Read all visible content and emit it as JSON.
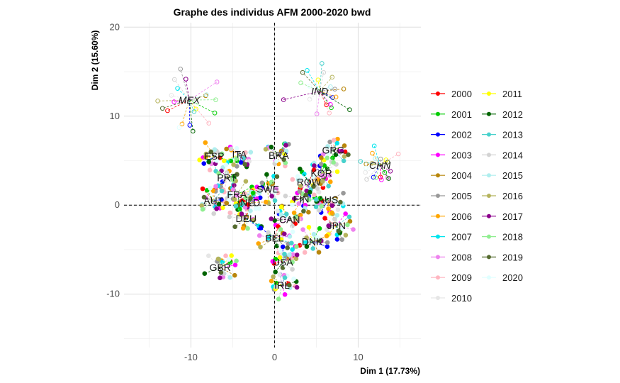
{
  "chart_data": {
    "type": "scatter",
    "title": "Graphe des individus AFM 2000-2020 bwd",
    "xlabel": "Dim 1 (17.73%)",
    "ylabel": "Dim 2 (15.60%)",
    "xlim": [
      -18,
      17.5
    ],
    "ylim": [
      -16,
      20.5
    ],
    "xticks": [
      -10,
      0,
      10
    ],
    "yticks": [
      -10,
      0,
      10,
      20
    ],
    "grid": true,
    "reference_lines": {
      "x": 0,
      "y": 0,
      "style": "dashed"
    },
    "legend_position": "right",
    "series": [
      {
        "name": "2000",
        "color": "#ff0000"
      },
      {
        "name": "2001",
        "color": "#00cc00"
      },
      {
        "name": "2002",
        "color": "#0000ff"
      },
      {
        "name": "2003",
        "color": "#ff00ff"
      },
      {
        "name": "2004",
        "color": "#b8860b"
      },
      {
        "name": "2005",
        "color": "#999999"
      },
      {
        "name": "2006",
        "color": "#ffa500"
      },
      {
        "name": "2007",
        "color": "#00e5ee"
      },
      {
        "name": "2008",
        "color": "#ee82ee"
      },
      {
        "name": "2009",
        "color": "#ffb6c1"
      },
      {
        "name": "2010",
        "color": "#e6e6e6"
      },
      {
        "name": "2011",
        "color": "#ffff00"
      },
      {
        "name": "2012",
        "color": "#006400"
      },
      {
        "name": "2013",
        "color": "#48d1cc"
      },
      {
        "name": "2014",
        "color": "#d3d3d3"
      },
      {
        "name": "2015",
        "color": "#afeeee"
      },
      {
        "name": "2016",
        "color": "#b5b35c"
      },
      {
        "name": "2017",
        "color": "#8b008b"
      },
      {
        "name": "2018",
        "color": "#90ee90"
      },
      {
        "name": "2019",
        "color": "#556b2f"
      },
      {
        "name": "2020",
        "color": "#e0ffff"
      }
    ],
    "countries": [
      {
        "label": "MEX",
        "x": -10.2,
        "y": 11.8,
        "italic": true
      },
      {
        "label": "IND",
        "x": 5.4,
        "y": 12.8,
        "italic": true
      },
      {
        "label": "CHN",
        "x": 12.6,
        "y": 4.5,
        "italic": true
      },
      {
        "label": "ESP",
        "x": -7.2,
        "y": 5.5,
        "italic": false
      },
      {
        "label": "ITA",
        "x": -4.2,
        "y": 5.7,
        "italic": false
      },
      {
        "label": "BRA",
        "x": 0.5,
        "y": 5.6,
        "italic": false
      },
      {
        "label": "GRC",
        "x": 7.0,
        "y": 6.2,
        "italic": false
      },
      {
        "label": "PRT",
        "x": -5.7,
        "y": 3.1,
        "italic": false
      },
      {
        "label": "KOR",
        "x": 5.6,
        "y": 3.6,
        "italic": false
      },
      {
        "label": "ROW",
        "x": 4.1,
        "y": 2.6,
        "italic": false
      },
      {
        "label": "FRA",
        "x": -4.5,
        "y": 1.2,
        "italic": false
      },
      {
        "label": "SWE",
        "x": -0.8,
        "y": 1.8,
        "italic": false
      },
      {
        "label": "AUS",
        "x": 6.4,
        "y": 0.6,
        "italic": false
      },
      {
        "label": "AUT",
        "x": -7.3,
        "y": 0.5,
        "italic": false
      },
      {
        "label": "NLD",
        "x": -2.9,
        "y": 0.3,
        "italic": false
      },
      {
        "label": "FIN",
        "x": 3.2,
        "y": 0.7,
        "italic": false
      },
      {
        "label": "DEU",
        "x": -3.4,
        "y": -1.5,
        "italic": false
      },
      {
        "label": "CAN",
        "x": 1.8,
        "y": -1.6,
        "italic": false
      },
      {
        "label": "JPN",
        "x": 7.4,
        "y": -2.3,
        "italic": false
      },
      {
        "label": "BEL",
        "x": 0.0,
        "y": -3.7,
        "italic": false
      },
      {
        "label": "DNK",
        "x": 4.5,
        "y": -4.1,
        "italic": false
      },
      {
        "label": "USA",
        "x": 1.0,
        "y": -6.4,
        "italic": false
      },
      {
        "label": "GBR",
        "x": -6.5,
        "y": -7.0,
        "italic": false
      },
      {
        "label": "IRL",
        "x": 0.9,
        "y": -9.0,
        "italic": false
      }
    ]
  }
}
